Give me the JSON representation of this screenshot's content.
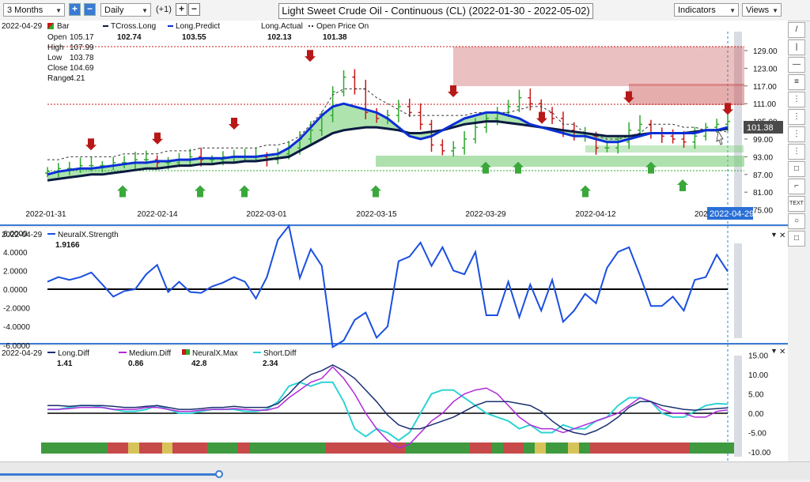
{
  "toolbar": {
    "range": "3 Months",
    "interval": "Daily",
    "offset": "(+1)",
    "title": "Light Sweet Crude Oil - Continuous (CL) (2022-01-30 - 2022-05-02)",
    "indicators": "Indicators",
    "views": "Views"
  },
  "main_panel": {
    "date": "2022-04-29",
    "bar_label": "Bar",
    "ohlc": [
      {
        "label": "Open",
        "value": "105.17"
      },
      {
        "label": "High",
        "value": "107.99"
      },
      {
        "label": "Low",
        "value": "103.78"
      },
      {
        "label": "Close",
        "value": "104.69"
      },
      {
        "label": "Range",
        "value": "4.21"
      }
    ],
    "legend": [
      {
        "name": "TCross.Long",
        "value": "102.74"
      },
      {
        "name": "Long.Predict",
        "value": "103.55"
      },
      {
        "name": "Long.Actual",
        "value": "102.13"
      },
      {
        "name": "Open Price On",
        "value": "101.38"
      }
    ],
    "price_marker": "101.38",
    "yticks": [
      "129.00",
      "123.00",
      "117.00",
      "111.00",
      "105.00",
      "99.00",
      "93.00",
      "87.00",
      "81.00",
      "75.00"
    ],
    "xticks": [
      "2022-01-31",
      "2022-02-14",
      "2022-03-01",
      "2022-03-15",
      "2022-03-29",
      "2022-04-12",
      "2022-"
    ],
    "x_highlight": "2022-04-29"
  },
  "strength_panel": {
    "date": "2022-04-29",
    "legend_name": "NeuralX.Strength",
    "legend_value": "1.9166",
    "yticks": [
      "6.0000",
      "4.0000",
      "2.0000",
      "0.0000",
      "-2.0000",
      "-4.0000",
      "-6.0000"
    ]
  },
  "diff_panel": {
    "date": "2022-04-29",
    "legend": [
      {
        "name": "Long.Diff",
        "value": "1.41"
      },
      {
        "name": "Medium.Diff",
        "value": "0.86"
      },
      {
        "name": "NeuralX.Max",
        "value": "42.8"
      },
      {
        "name": "Short.Diff",
        "value": "2.34"
      }
    ],
    "yticks": [
      "15.00",
      "10.00",
      "5.00",
      "0.00",
      "-5.00",
      "-10.00"
    ]
  },
  "right_tools": [
    "/",
    "|",
    "—",
    "≡",
    "⋮",
    "⋮",
    "⋮",
    "⋮",
    "□",
    "⌐",
    "TEXT",
    "○",
    "□"
  ],
  "colors": {
    "long_predict": "#0b2fd6",
    "tcross": "#0a1a40",
    "strength": "#1a4fe0",
    "long_diff": "#1a3070",
    "medium_diff": "#b02adb",
    "short_diff": "#2ed3d3",
    "up": "#2ea82e",
    "down": "#c81818",
    "band_green": "#6cc96c",
    "band_red": "#c74a4a"
  }
}
